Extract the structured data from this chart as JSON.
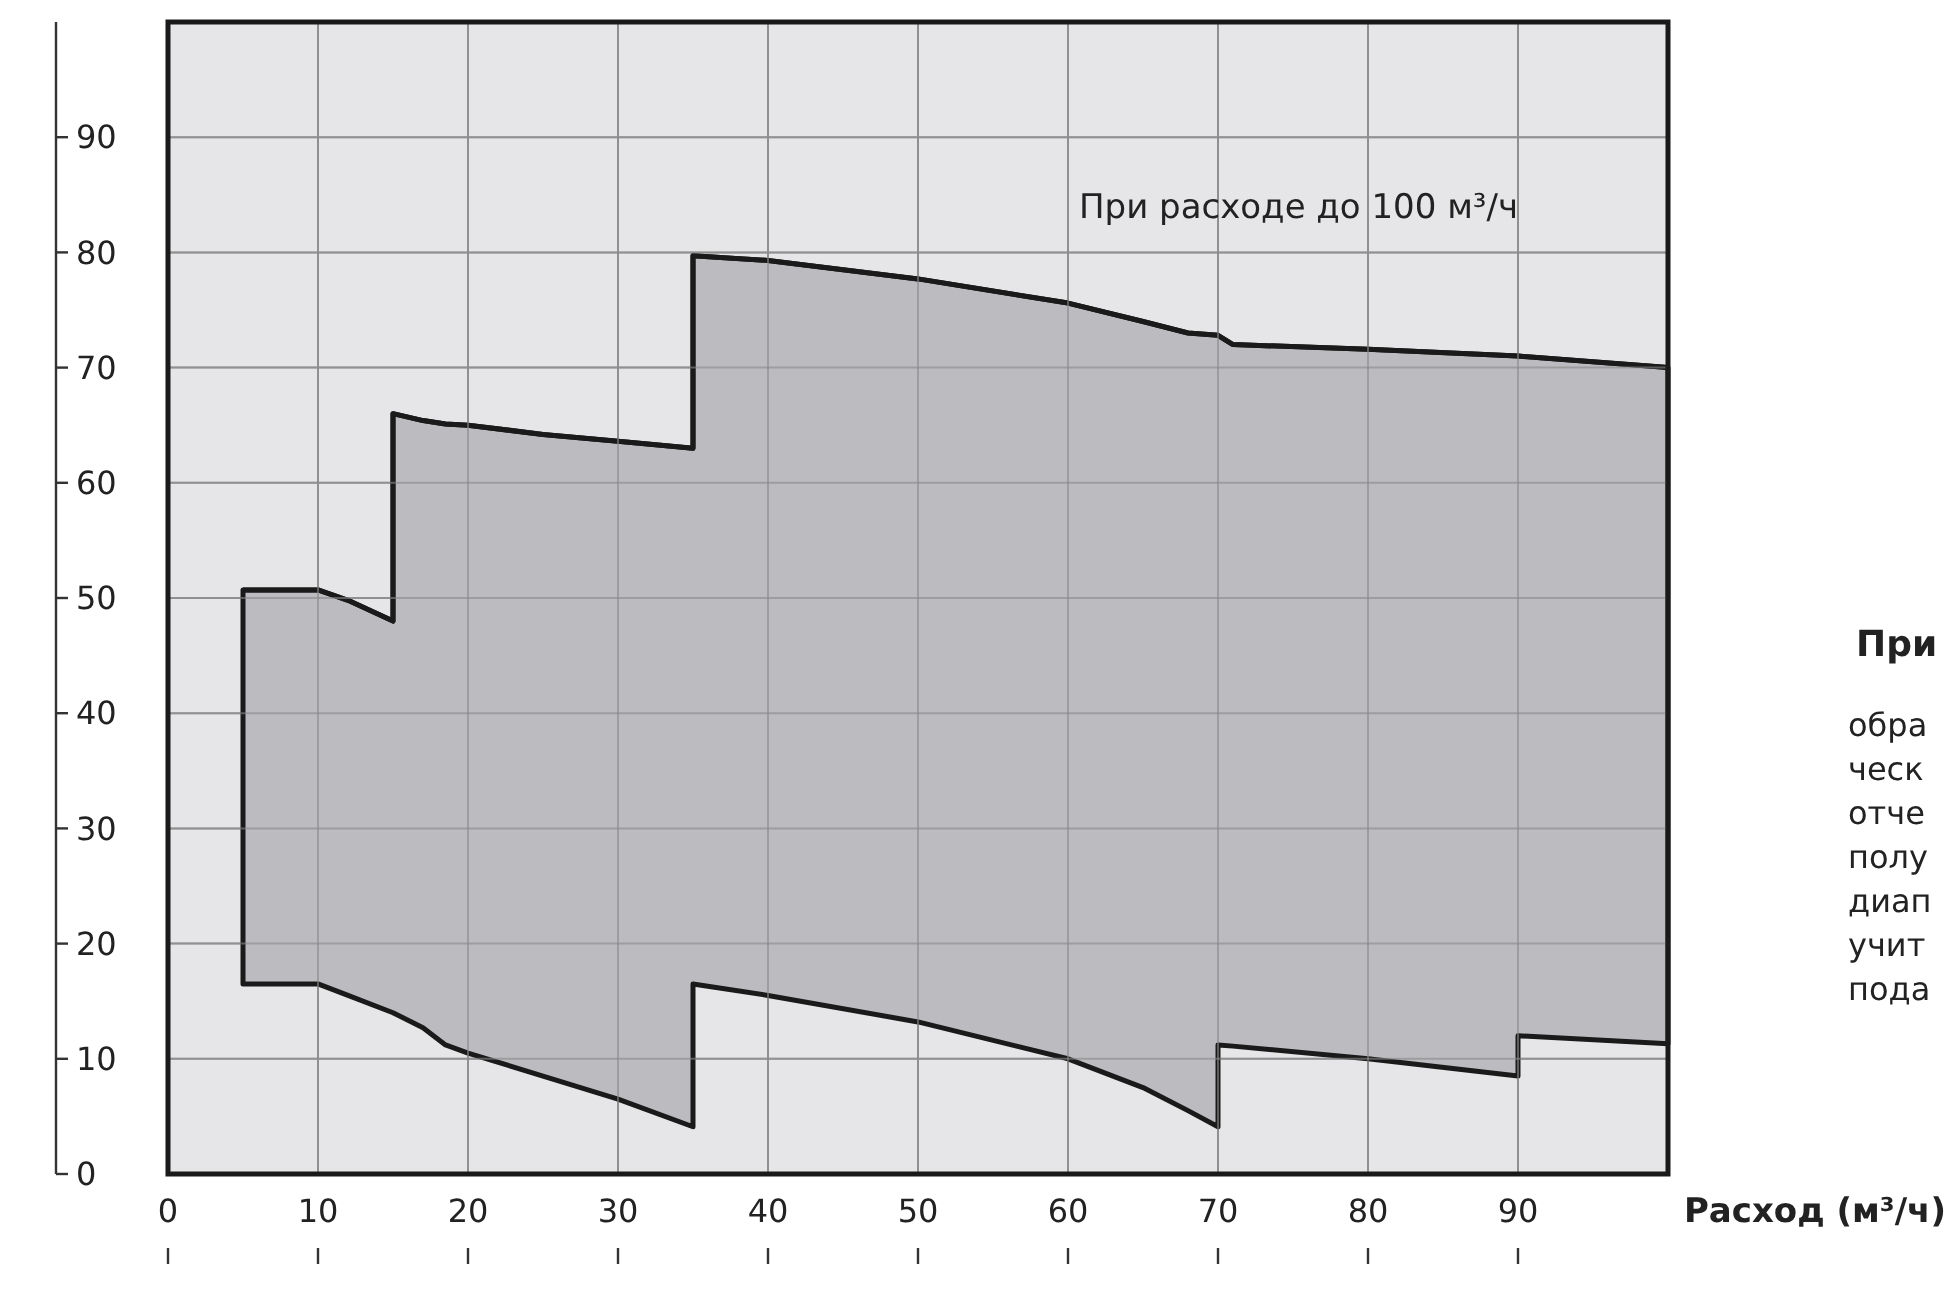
{
  "chart_data": {
    "type": "line",
    "xlabel": "Расход (м³/ч)",
    "xlim": [
      0,
      100
    ],
    "xticks": [
      0,
      10,
      20,
      30,
      40,
      50,
      60,
      70,
      80,
      90
    ],
    "ylim": [
      0,
      100
    ],
    "yticks": [
      0,
      10,
      20,
      30,
      40,
      50,
      60,
      70,
      80,
      90
    ],
    "grid": true,
    "x": [
      5,
      10,
      12,
      15,
      15,
      17,
      18.5,
      20,
      25,
      30,
      35,
      35,
      40,
      50,
      60,
      65,
      68,
      70,
      70,
      71,
      80,
      90,
      90,
      100
    ],
    "series": [
      {
        "color": "#1a1a1a",
        "values": [
          50.7,
          50.7,
          49.8,
          48,
          66,
          65.4,
          65.1,
          65,
          64.2,
          63.6,
          63,
          79.7,
          79.3,
          77.7,
          75.6,
          74,
          73,
          72.8,
          72.8,
          72,
          71.6,
          71,
          71,
          70
        ],
        "upper": [
          50.7,
          50.7,
          49.8,
          48,
          66,
          65.4,
          65.1,
          65,
          64.2,
          63.6,
          63,
          79.7,
          79.3,
          77.7,
          75.6,
          74,
          73,
          72.8,
          72.8,
          72,
          71.6,
          71,
          71,
          70
        ],
        "lower": [
          16.5,
          16.5,
          15.5,
          14,
          14,
          12.7,
          11.2,
          10.5,
          8.5,
          6.5,
          4.1,
          16.5,
          15.5,
          13.2,
          10,
          7.5,
          5.5,
          4.1,
          11.2,
          11.1,
          10,
          8.5,
          12,
          11.3
        ]
      }
    ],
    "annotations": [
      "При расходе до 100 м³/ч",
      "При",
      "обра",
      "ческ",
      "отче",
      "полу",
      "диап",
      "учит",
      "пода"
    ]
  }
}
